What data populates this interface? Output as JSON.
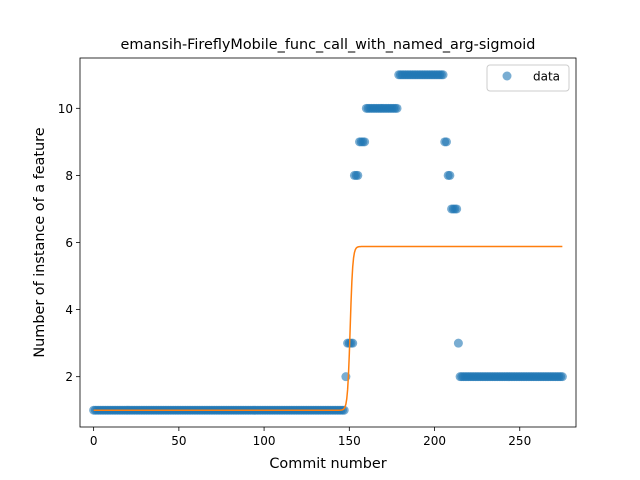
{
  "chart_data": {
    "type": "scatter",
    "title": "emansih-FireflyMobile_func_call_with_named_arg-sigmoid",
    "xlabel": "Commit number",
    "ylabel": "Number of instance of a feature",
    "xlim": [
      -8,
      283
    ],
    "ylim": [
      0.5,
      11.5
    ],
    "x_ticks": [
      0,
      50,
      100,
      150,
      200,
      250
    ],
    "y_ticks": [
      2,
      4,
      6,
      8,
      10
    ],
    "grid": false,
    "legend": {
      "placement": "top-right",
      "entries": [
        "data"
      ]
    },
    "colors": {
      "points": "#1f77b4",
      "fit": "#ff7f0e"
    },
    "series": [
      {
        "name": "data",
        "kind": "scatter",
        "segments": [
          {
            "x_start": 0,
            "x_end": 147,
            "y": 1
          },
          {
            "x_start": 148,
            "x_end": 148,
            "y": 2
          },
          {
            "x_start": 149,
            "x_end": 152,
            "y": 3
          },
          {
            "x_start": 153,
            "x_end": 155,
            "y": 8
          },
          {
            "x_start": 156,
            "x_end": 159,
            "y": 9
          },
          {
            "x_start": 160,
            "x_end": 178,
            "y": 10
          },
          {
            "x_start": 179,
            "x_end": 205,
            "y": 11
          },
          {
            "x_start": 206,
            "x_end": 207,
            "y": 9
          },
          {
            "x_start": 208,
            "x_end": 209,
            "y": 8
          },
          {
            "x_start": 210,
            "x_end": 213,
            "y": 7
          },
          {
            "x_start": 214,
            "x_end": 214,
            "y": 3
          },
          {
            "x_start": 215,
            "x_end": 275,
            "y": 2
          }
        ]
      },
      {
        "kind": "line",
        "model": "sigmoid",
        "x_range": [
          0,
          275
        ],
        "params": {
          "low": 1.0,
          "high": 5.88,
          "midpoint": 150.5,
          "slope": 1.3
        }
      }
    ]
  }
}
